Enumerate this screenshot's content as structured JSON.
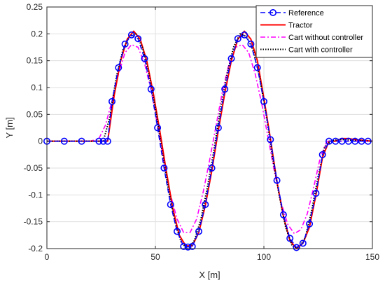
{
  "chart_data": {
    "type": "line",
    "title": "",
    "xlabel": "X [m]",
    "ylabel": "Y [m]",
    "xlim": [
      0,
      150
    ],
    "ylim": [
      -0.2,
      0.25
    ],
    "xticks": [
      0,
      50,
      100,
      150
    ],
    "yticks": [
      -0.2,
      -0.15,
      -0.1,
      -0.05,
      0,
      0.05,
      0.1,
      0.15,
      0.2,
      0.25
    ],
    "xtick_labels": [
      "0",
      "50",
      "100",
      "150"
    ],
    "ytick_labels": [
      "-0.2",
      "-0.15",
      "-0.1",
      "-0.05",
      "0",
      "0.05",
      "0.1",
      "0.15",
      "0.2",
      "0.25"
    ],
    "grid": true,
    "legend_position": "top-right",
    "series": [
      {
        "name": "Reference",
        "color": "#0000ff",
        "style": "dashed-circle-markers",
        "x": [
          0,
          8,
          16,
          24,
          26,
          28,
          30,
          33,
          36,
          39,
          42,
          45,
          48,
          51,
          54,
          57,
          60,
          63,
          65,
          67,
          70,
          73,
          76,
          79,
          82,
          85,
          88,
          91,
          94,
          97,
          100,
          103,
          106,
          109,
          112,
          115,
          118,
          121,
          124,
          127,
          130,
          133,
          136,
          139,
          142,
          145,
          148
        ],
        "y": [
          0,
          0,
          0,
          0,
          0,
          0,
          0.074,
          0.137,
          0.181,
          0.198,
          0.191,
          0.154,
          0.097,
          0.025,
          -0.05,
          -0.118,
          -0.168,
          -0.196,
          -0.197,
          -0.196,
          -0.168,
          -0.118,
          -0.05,
          0.025,
          0.097,
          0.154,
          0.191,
          0.198,
          0.181,
          0.137,
          0.074,
          0.003,
          -0.073,
          -0.137,
          -0.181,
          -0.198,
          -0.19,
          -0.154,
          -0.097,
          -0.025,
          0,
          0,
          0,
          0,
          0,
          0,
          0
        ]
      },
      {
        "name": "Tractor",
        "color": "#ff0000",
        "style": "solid",
        "x": [
          0,
          25,
          28,
          31,
          34,
          37,
          40,
          43,
          46,
          49,
          52,
          55,
          58,
          61,
          64,
          67,
          70,
          73,
          76,
          79,
          82,
          85,
          88,
          91,
          94,
          97,
          100,
          103,
          106,
          109,
          112,
          115,
          118,
          121,
          124,
          127,
          130,
          133,
          136,
          139,
          142,
          150
        ],
        "y": [
          0,
          0,
          0,
          0.085,
          0.15,
          0.19,
          0.205,
          0.19,
          0.15,
          0.09,
          0.02,
          -0.055,
          -0.125,
          -0.175,
          -0.195,
          -0.195,
          -0.17,
          -0.12,
          -0.055,
          0.02,
          0.09,
          0.15,
          0.19,
          0.205,
          0.19,
          0.15,
          0.08,
          0.005,
          -0.075,
          -0.14,
          -0.185,
          -0.2,
          -0.19,
          -0.16,
          -0.1,
          -0.03,
          0,
          0,
          0.005,
          0.005,
          0.003,
          0
        ]
      },
      {
        "name": "Cart without controller",
        "color": "#ff00ff",
        "style": "dash-dot",
        "x": [
          0,
          20,
          24,
          27,
          30,
          33,
          36,
          39,
          42,
          45,
          48,
          51,
          54,
          57,
          60,
          63,
          66,
          69,
          72,
          75,
          78,
          81,
          84,
          87,
          90,
          93,
          96,
          99,
          102,
          105,
          108,
          111,
          114,
          117,
          120,
          123,
          126,
          129,
          132,
          135,
          138,
          141,
          144,
          150
        ],
        "y": [
          0,
          0,
          0.005,
          0.03,
          0.075,
          0.125,
          0.165,
          0.18,
          0.175,
          0.145,
          0.095,
          0.03,
          -0.04,
          -0.1,
          -0.145,
          -0.17,
          -0.17,
          -0.145,
          -0.095,
          -0.035,
          0.03,
          0.095,
          0.145,
          0.175,
          0.18,
          0.165,
          0.125,
          0.07,
          0.005,
          -0.06,
          -0.115,
          -0.155,
          -0.172,
          -0.165,
          -0.135,
          -0.085,
          -0.03,
          0,
          0,
          0,
          0,
          0,
          0,
          0
        ]
      },
      {
        "name": "Cart with controller",
        "color": "#000000",
        "style": "dotted",
        "x": [
          0,
          26,
          29,
          32,
          35,
          38,
          41,
          44,
          47,
          50,
          53,
          56,
          59,
          62,
          65,
          68,
          71,
          74,
          77,
          80,
          83,
          86,
          89,
          92,
          95,
          98,
          101,
          104,
          107,
          110,
          113,
          116,
          119,
          122,
          125,
          128,
          131,
          134,
          137,
          140,
          150
        ],
        "y": [
          0,
          0,
          0.045,
          0.12,
          0.17,
          0.195,
          0.2,
          0.175,
          0.125,
          0.06,
          -0.015,
          -0.09,
          -0.15,
          -0.19,
          -0.2,
          -0.185,
          -0.145,
          -0.085,
          -0.015,
          0.06,
          0.125,
          0.175,
          0.2,
          0.195,
          0.17,
          0.12,
          0.05,
          -0.03,
          -0.1,
          -0.16,
          -0.195,
          -0.2,
          -0.18,
          -0.13,
          -0.065,
          -0.01,
          0,
          0.003,
          0.003,
          0.002,
          0
        ]
      }
    ]
  }
}
